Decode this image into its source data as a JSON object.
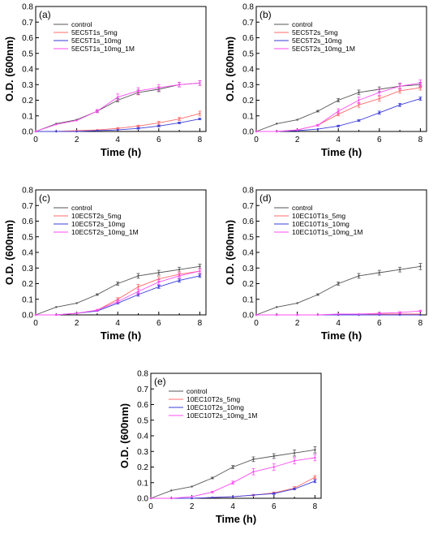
{
  "figure": {
    "panel_letters": [
      "(a)",
      "(b)",
      "(c)",
      "(d)",
      "(e)"
    ]
  },
  "chart_data": [
    {
      "type": "line",
      "panel": "(a)",
      "xlabel": "Time (h)",
      "ylabel": "O.D. (600nm)",
      "xlim": [
        0,
        8.3
      ],
      "ylim": [
        0,
        0.8
      ],
      "x_ticks": [
        "0",
        "2",
        "4",
        "6",
        "8"
      ],
      "y_ticks": [
        "0.0",
        "0.1",
        "0.2",
        "0.3",
        "0.4",
        "0.5",
        "0.6",
        "0.7",
        "0.8"
      ],
      "legend_position": "top-left",
      "x": [
        0,
        1,
        2,
        3,
        4,
        5,
        6,
        7,
        8
      ],
      "series": [
        {
          "name": "control",
          "color": "#555555",
          "values": [
            0.0,
            0.05,
            0.075,
            0.13,
            0.2,
            0.25,
            0.27,
            0.3,
            0.31
          ],
          "err": [
            0,
            0,
            0,
            0.005,
            0.01,
            0.015,
            0.015,
            0.015,
            0.015
          ]
        },
        {
          "name": "5EC5T1s_5mg",
          "color": "#ff6b6b",
          "values": [
            0.0,
            0.0,
            0.005,
            0.01,
            0.02,
            0.035,
            0.055,
            0.08,
            0.115
          ],
          "err": [
            0,
            0,
            0,
            0,
            0.005,
            0.005,
            0.01,
            0.01,
            0.015
          ]
        },
        {
          "name": "5EC5T1s_10mg",
          "color": "#3b3bdb",
          "values": [
            0.0,
            0.0,
            0.0,
            0.005,
            0.01,
            0.02,
            0.035,
            0.055,
            0.08
          ],
          "err": [
            0,
            0,
            0,
            0,
            0,
            0.005,
            0.005,
            0.005,
            0.005
          ]
        },
        {
          "name": "5EC5T1s_10mg_1M",
          "color": "#ff4df2",
          "values": [
            0.0,
            0.045,
            0.07,
            0.13,
            0.22,
            0.26,
            0.28,
            0.3,
            0.31
          ],
          "err": [
            0,
            0,
            0,
            0.01,
            0.02,
            0.02,
            0.02,
            0.015,
            0.015
          ]
        }
      ]
    },
    {
      "type": "line",
      "panel": "(b)",
      "xlabel": "Time (h)",
      "ylabel": "O.D. (600nm)",
      "xlim": [
        0,
        8.3
      ],
      "ylim": [
        0,
        0.8
      ],
      "x_ticks": [
        "0",
        "2",
        "4",
        "6",
        "8"
      ],
      "y_ticks": [
        "0.0",
        "0.1",
        "0.2",
        "0.3",
        "0.4",
        "0.5",
        "0.6",
        "0.7",
        "0.8"
      ],
      "legend_position": "top-left",
      "x": [
        0,
        1,
        2,
        3,
        4,
        5,
        6,
        7,
        8
      ],
      "series": [
        {
          "name": "control",
          "color": "#555555",
          "values": [
            0.0,
            0.05,
            0.075,
            0.13,
            0.2,
            0.25,
            0.27,
            0.29,
            0.3
          ],
          "err": [
            0,
            0,
            0,
            0.005,
            0.01,
            0.015,
            0.015,
            0.015,
            0.015
          ]
        },
        {
          "name": "5EC5T2s_5mg",
          "color": "#ff6b6b",
          "values": [
            0.0,
            0.0,
            0.01,
            0.04,
            0.11,
            0.17,
            0.21,
            0.26,
            0.28
          ],
          "err": [
            0,
            0,
            0,
            0.005,
            0.01,
            0.015,
            0.015,
            0.015,
            0.015
          ]
        },
        {
          "name": "5EC5T2s_10mg",
          "color": "#3b3bdb",
          "values": [
            0.0,
            0.0,
            0.005,
            0.015,
            0.035,
            0.07,
            0.12,
            0.17,
            0.21
          ],
          "err": [
            0,
            0,
            0,
            0,
            0.005,
            0.005,
            0.01,
            0.01,
            0.01
          ]
        },
        {
          "name": "5EC5T2s_10mg_1M",
          "color": "#ff4df2",
          "values": [
            0.0,
            0.0,
            0.01,
            0.04,
            0.13,
            0.2,
            0.25,
            0.29,
            0.31
          ],
          "err": [
            0,
            0,
            0,
            0.005,
            0.015,
            0.02,
            0.02,
            0.02,
            0.02
          ]
        }
      ]
    },
    {
      "type": "line",
      "panel": "(c)",
      "xlabel": "Time (h)",
      "ylabel": "O.D. (600nm)",
      "xlim": [
        0,
        8.3
      ],
      "ylim": [
        0,
        0.8
      ],
      "x_ticks": [
        "0",
        "2",
        "4",
        "6",
        "8"
      ],
      "y_ticks": [
        "0.0",
        "0.1",
        "0.2",
        "0.3",
        "0.4",
        "0.5",
        "0.6",
        "0.7",
        "0.8"
      ],
      "legend_position": "top-left",
      "x": [
        0,
        1,
        2,
        3,
        4,
        5,
        6,
        7,
        8
      ],
      "series": [
        {
          "name": "control",
          "color": "#555555",
          "values": [
            0.0,
            0.05,
            0.075,
            0.13,
            0.2,
            0.25,
            0.27,
            0.29,
            0.31
          ],
          "err": [
            0,
            0,
            0,
            0.005,
            0.01,
            0.015,
            0.015,
            0.015,
            0.015
          ]
        },
        {
          "name": "10EC5T2s_5mg",
          "color": "#ff6b6b",
          "values": [
            0.0,
            0.0,
            0.01,
            0.03,
            0.1,
            0.18,
            0.23,
            0.26,
            0.28
          ],
          "err": [
            0,
            0,
            0,
            0.005,
            0.01,
            0.015,
            0.015,
            0.015,
            0.015
          ]
        },
        {
          "name": "10EC5T2s_10mg",
          "color": "#3b3bdb",
          "values": [
            0.0,
            0.0,
            0.01,
            0.025,
            0.075,
            0.13,
            0.18,
            0.22,
            0.25
          ],
          "err": [
            0,
            0,
            0,
            0,
            0.005,
            0.01,
            0.01,
            0.01,
            0.01
          ]
        },
        {
          "name": "10EC5T2s_10mg_1M",
          "color": "#ff4df2",
          "values": [
            0.0,
            0.0,
            0.01,
            0.03,
            0.085,
            0.15,
            0.21,
            0.25,
            0.28
          ],
          "err": [
            0,
            0,
            0,
            0.005,
            0.01,
            0.015,
            0.015,
            0.015,
            0.015
          ]
        }
      ]
    },
    {
      "type": "line",
      "panel": "(d)",
      "xlabel": "Time (h)",
      "ylabel": "O.D. (600nm)",
      "xlim": [
        0,
        8.3
      ],
      "ylim": [
        0,
        0.8
      ],
      "x_ticks": [
        "0",
        "2",
        "4",
        "6",
        "8"
      ],
      "y_ticks": [
        "0.0",
        "0.1",
        "0.2",
        "0.3",
        "0.4",
        "0.5",
        "0.6",
        "0.7",
        "0.8"
      ],
      "legend_position": "top-left",
      "x": [
        0,
        1,
        2,
        3,
        4,
        5,
        6,
        7,
        8
      ],
      "series": [
        {
          "name": "control",
          "color": "#555555",
          "values": [
            0.0,
            0.05,
            0.075,
            0.13,
            0.2,
            0.25,
            0.27,
            0.29,
            0.31
          ],
          "err": [
            0,
            0,
            0,
            0.005,
            0.01,
            0.015,
            0.015,
            0.015,
            0.02
          ]
        },
        {
          "name": "10EC10T1s_5mg",
          "color": "#ff6b6b",
          "values": [
            0.0,
            0.0,
            0.0,
            0.0,
            0.0,
            0.0,
            0.005,
            0.005,
            0.005
          ],
          "err": [
            0,
            0,
            0,
            0,
            0,
            0,
            0,
            0,
            0
          ]
        },
        {
          "name": "10EC10T1s_10mg",
          "color": "#3b3bdb",
          "values": [
            0.0,
            0.0,
            0.0,
            0.0,
            0.0,
            0.0,
            0.0,
            0.0,
            0.0
          ],
          "err": [
            0,
            0,
            0,
            0,
            0,
            0,
            0,
            0,
            0
          ]
        },
        {
          "name": "10EC10T1s_10mg_1M",
          "color": "#ff4df2",
          "values": [
            0.0,
            0.0,
            0.0,
            0.0,
            0.005,
            0.005,
            0.01,
            0.015,
            0.025
          ],
          "err": [
            0,
            0,
            0,
            0,
            0,
            0,
            0.005,
            0.005,
            0.005
          ]
        }
      ]
    },
    {
      "type": "line",
      "panel": "(e)",
      "xlabel": "Time (h)",
      "ylabel": "O.D. (600nm)",
      "xlim": [
        0,
        8.3
      ],
      "ylim": [
        0,
        0.8
      ],
      "x_ticks": [
        "0",
        "2",
        "4",
        "6",
        "8"
      ],
      "y_ticks": [
        "0.0",
        "0.1",
        "0.2",
        "0.3",
        "0.4",
        "0.5",
        "0.6",
        "0.7",
        "0.8"
      ],
      "legend_position": "top-left",
      "x": [
        0,
        1,
        2,
        3,
        4,
        5,
        6,
        7,
        8
      ],
      "series": [
        {
          "name": "control",
          "color": "#555555",
          "values": [
            0.0,
            0.05,
            0.075,
            0.13,
            0.2,
            0.25,
            0.27,
            0.29,
            0.31
          ],
          "err": [
            0,
            0,
            0,
            0.005,
            0.01,
            0.015,
            0.015,
            0.02,
            0.02
          ]
        },
        {
          "name": "10EC10T2s_5mg",
          "color": "#ff6b6b",
          "values": [
            0.0,
            0.0,
            0.0,
            0.005,
            0.01,
            0.02,
            0.035,
            0.065,
            0.135
          ],
          "err": [
            0,
            0,
            0,
            0,
            0,
            0.005,
            0.005,
            0.01,
            0.01
          ]
        },
        {
          "name": "10EC10T2s_10mg",
          "color": "#3b3bdb",
          "values": [
            0.0,
            0.0,
            0.0,
            0.005,
            0.01,
            0.02,
            0.03,
            0.06,
            0.11
          ],
          "err": [
            0,
            0,
            0,
            0,
            0,
            0,
            0.005,
            0.005,
            0.01
          ]
        },
        {
          "name": "10EC10T2s_10mg_1M",
          "color": "#ff4df2",
          "values": [
            0.0,
            0.0,
            0.01,
            0.04,
            0.1,
            0.17,
            0.2,
            0.24,
            0.26
          ],
          "err": [
            0,
            0,
            0,
            0.005,
            0.01,
            0.02,
            0.02,
            0.02,
            0.02
          ]
        }
      ]
    }
  ]
}
